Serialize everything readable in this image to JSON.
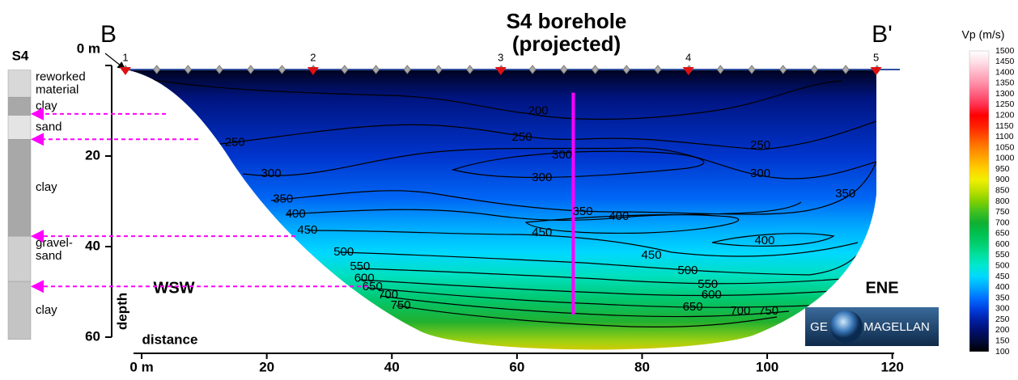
{
  "chart_data": {
    "type": "contour",
    "title": "S4 borehole",
    "subtitle": "(projected)",
    "section_start": "B",
    "section_end": "B'",
    "direction_left": "WSW",
    "direction_right": "ENE",
    "xlabel": "distance",
    "ylabel": "depth",
    "xlim": [
      -1.3,
      120.3
    ],
    "xticks": [
      {
        "value": 0,
        "label": "0 m"
      },
      20,
      40,
      60,
      80,
      100,
      120
    ],
    "ylim": [
      0,
      60
    ],
    "yticks": [
      {
        "value": 0,
        "label": "0 m"
      },
      20,
      40,
      60
    ],
    "stations": [
      "1",
      "2",
      "3",
      "4",
      "5"
    ],
    "station_x": [
      -2.6,
      27.4,
      57.4,
      87.4,
      117.4
    ],
    "borehole": {
      "x": 69,
      "depth": [
        6,
        55
      ],
      "color": "#ff00ff"
    },
    "contour_labels": [
      {
        "level": 200,
        "x": 63.4,
        "depth": 10.1
      },
      {
        "level": 250,
        "x": 14.9,
        "depth": 17.1
      },
      {
        "level": 250,
        "x": 60.8,
        "depth": 15.9
      },
      {
        "level": 250,
        "x": 98.9,
        "depth": 17.7
      },
      {
        "level": 300,
        "x": 20.7,
        "depth": 23.9
      },
      {
        "level": 300,
        "x": 67.2,
        "depth": 19.8
      },
      {
        "level": 300,
        "x": 64.0,
        "depth": 24.8
      },
      {
        "level": 300,
        "x": 98.9,
        "depth": 23.9
      },
      {
        "level": 350,
        "x": 22.6,
        "depth": 29.6
      },
      {
        "level": 350,
        "x": 112.5,
        "depth": 28.4
      },
      {
        "level": 350,
        "x": 70.5,
        "depth": 32.3
      },
      {
        "level": 400,
        "x": 24.6,
        "depth": 32.9
      },
      {
        "level": 400,
        "x": 76.3,
        "depth": 33.4
      },
      {
        "level": 400,
        "x": 99.6,
        "depth": 38.8
      },
      {
        "level": 450,
        "x": 26.5,
        "depth": 36.4
      },
      {
        "level": 450,
        "x": 64.0,
        "depth": 37.0
      },
      {
        "level": 450,
        "x": 81.5,
        "depth": 42.0
      },
      {
        "level": 500,
        "x": 32.3,
        "depth": 41.3
      },
      {
        "level": 500,
        "x": 87.3,
        "depth": 45.4
      },
      {
        "level": 550,
        "x": 34.9,
        "depth": 44.5
      },
      {
        "level": 550,
        "x": 90.5,
        "depth": 48.4
      },
      {
        "level": 600,
        "x": 35.6,
        "depth": 47.1
      },
      {
        "level": 600,
        "x": 91.1,
        "depth": 50.7
      },
      {
        "level": 650,
        "x": 36.9,
        "depth": 48.9
      },
      {
        "level": 650,
        "x": 88.1,
        "depth": 53.4
      },
      {
        "level": 700,
        "x": 39.4,
        "depth": 50.7
      },
      {
        "level": 700,
        "x": 95.7,
        "depth": 54.3
      },
      {
        "level": 750,
        "x": 41.4,
        "depth": 53.0
      },
      {
        "level": 750,
        "x": 100.2,
        "depth": 54.3
      }
    ],
    "colorbar": {
      "title": "Vp (m/s)",
      "ticks": [
        100,
        150,
        200,
        250,
        300,
        350,
        400,
        450,
        500,
        550,
        600,
        650,
        700,
        750,
        800,
        850,
        900,
        950,
        1000,
        1050,
        1100,
        1150,
        1200,
        1250,
        1300,
        1350,
        1400,
        1450,
        1500
      ],
      "colors": [
        "#000000",
        "#000a3a",
        "#001070",
        "#0020a8",
        "#0040e0",
        "#0070ff",
        "#00a8ff",
        "#00d8ff",
        "#00e8d0",
        "#00e0a0",
        "#00d070",
        "#00c050",
        "#10b030",
        "#40c020",
        "#80d000",
        "#c0e000",
        "#f0f000",
        "#ffd000",
        "#ffa800",
        "#ff8000",
        "#ff5000",
        "#ff2000",
        "#ff0000",
        "#ff3050",
        "#ff6080",
        "#ff90a8",
        "#ffb8c8",
        "#ffe0e8",
        "#ffffff"
      ]
    },
    "log": {
      "title": "S4",
      "layers": [
        {
          "label": [
            "reworked",
            "material"
          ],
          "depth": [
            1,
            7
          ],
          "color": "#d8d8d8"
        },
        {
          "label": [
            "clay"
          ],
          "depth": [
            7,
            11
          ],
          "color": "#a8a8a8"
        },
        {
          "label": [
            "sand"
          ],
          "depth": [
            11,
            16.3
          ],
          "color": "#e4e4e4"
        },
        {
          "label": [
            "clay"
          ],
          "depth": [
            16.3,
            37.7
          ],
          "color": "#a8a8a8"
        },
        {
          "label": [
            "gravel-",
            "sand"
          ],
          "depth": [
            37.7,
            47.7
          ],
          "color": "#cfcfcf"
        },
        {
          "label": [
            "clay"
          ],
          "depth": [
            47.7,
            60.5
          ],
          "color": "#c4c4c4"
        }
      ],
      "marker_depths": [
        10.7,
        16.3,
        37.7,
        48.8
      ],
      "marker_color": "#ff00ff"
    },
    "logo": [
      "GE",
      "MAGELLAN"
    ]
  }
}
